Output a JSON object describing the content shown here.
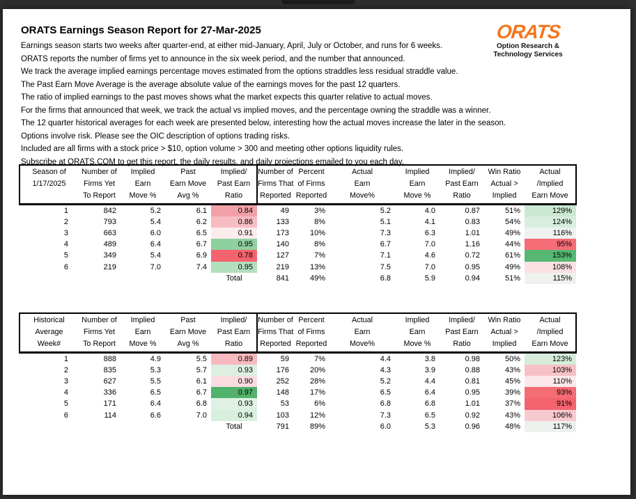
{
  "page": {
    "title": "ORATS Earnings Season Report for 27-Mar-2025",
    "intro_lines": [
      "Earnings season starts two weeks after quarter-end, at either mid-January, April, July or October, and runs for 6 weeks.",
      "ORATS reports the number of firms yet to announce in the six week period, and the number that announced.",
      "We track the average implied earnings percentage moves estimated from the options straddles less residual straddle value.",
      "The Past Earn Move Average is the average absolute value of the earnings moves for the past 12 quarters.",
      "The ratio of implied earnings to the past moves shows what the market expects this quarter relative to actual moves.",
      "For the firms that announced that week, we track the actual vs implied moves, and the percentage owning the straddle was a winner.",
      "The 12 quarter historical averages for each week are presented below, interesting how the actual moves increase the later in the season.",
      "Options involve risk. Please see the OIC description of options trading risks.",
      "Included are all firms with a stock price > $10, option volume > 300 and meeting other options liquidity rules.",
      "Subscribe at ORATS.COM to get this report, the daily results, and daily projections emailed to you each day."
    ]
  },
  "logo": {
    "brand": "ORATS",
    "tagline_line1": "Option Research &",
    "tagline_line2": "Technology Services",
    "brand_color": "#f4771f"
  },
  "tables": [
    {
      "name": "current-season",
      "header_columns": [
        [
          "Season of",
          "1/17/2025",
          ""
        ],
        [
          "Number of",
          "Firms Yet",
          "To Report"
        ],
        [
          "Implied",
          "Earn",
          "Move %"
        ],
        [
          "Past",
          "Earn Move",
          "Avg %"
        ],
        [
          "Implied/",
          "Past Earn",
          "Ratio"
        ],
        [
          "Number of",
          "Firms That",
          "Reported"
        ],
        [
          "Percent",
          "of Firms",
          "Reported"
        ],
        [
          "Actual",
          "Earn",
          "Move%"
        ],
        [
          "Implied",
          "Earn",
          "Move %"
        ],
        [
          "Implied/",
          "Past Earn",
          "Ratio"
        ],
        [
          "Win Ratio",
          "Actual >",
          "Implied"
        ],
        [
          "Actual",
          "/Implied",
          "Earn Move"
        ]
      ],
      "rows": [
        {
          "cells": [
            "1",
            "842",
            "5.2",
            "6.1",
            "0.84",
            "49",
            "3%",
            "5.2",
            "4.0",
            "0.87",
            "51%",
            "129%"
          ],
          "ratio_fill": "#f2a0a7",
          "move_fill": "#cbe8d3"
        },
        {
          "cells": [
            "2",
            "793",
            "5.4",
            "6.2",
            "0.86",
            "133",
            "8%",
            "5.1",
            "4.1",
            "0.83",
            "54%",
            "124%"
          ],
          "ratio_fill": "#f6bcc1",
          "move_fill": "#d8eedf"
        },
        {
          "cells": [
            "3",
            "663",
            "6.0",
            "6.5",
            "0.91",
            "173",
            "10%",
            "7.3",
            "6.3",
            "1.01",
            "49%",
            "116%"
          ],
          "ratio_fill": "#fcecee",
          "move_fill": "#eff2f0"
        },
        {
          "cells": [
            "4",
            "489",
            "6.4",
            "6.7",
            "0.95",
            "140",
            "8%",
            "6.7",
            "7.0",
            "1.16",
            "44%",
            "95%"
          ],
          "ratio_fill": "#8fd09f",
          "move_fill": "#f56d76"
        },
        {
          "cells": [
            "5",
            "349",
            "5.4",
            "6.9",
            "0.78",
            "127",
            "7%",
            "7.1",
            "4.6",
            "0.72",
            "61%",
            "153%"
          ],
          "ratio_fill": "#f4636e",
          "move_fill": "#56b873"
        },
        {
          "cells": [
            "6",
            "219",
            "7.0",
            "7.4",
            "0.95",
            "219",
            "13%",
            "7.5",
            "7.0",
            "0.95",
            "49%",
            "108%"
          ],
          "ratio_fill": "#b2dfbd",
          "move_fill": "#fbe1e3"
        }
      ],
      "total": {
        "cells": [
          "",
          "",
          "",
          "",
          "Total",
          "841",
          "49%",
          "6.8",
          "5.9",
          "0.94",
          "51%",
          "115%"
        ],
        "move_fill": "#eff1ef"
      }
    },
    {
      "name": "historical-average",
      "header_columns": [
        [
          "Historical",
          "Average",
          "Week#"
        ],
        [
          "Number of",
          "Firms Yet",
          "To Report"
        ],
        [
          "Implied",
          "Earn",
          "Move %"
        ],
        [
          "Past",
          "Earn Move",
          "Avg %"
        ],
        [
          "Implied/",
          "Past Earn",
          "Ratio"
        ],
        [
          "Number of",
          "Firms That",
          "Reported"
        ],
        [
          "Percent",
          "of Firms",
          "Reported"
        ],
        [
          "Actual",
          "Earn",
          "Move%"
        ],
        [
          "Implied",
          "Earn",
          "Move %"
        ],
        [
          "Implied/",
          "Past Earn",
          "Ratio"
        ],
        [
          "Win Ratio",
          "Actual >",
          "Implied"
        ],
        [
          "Actual",
          "/Implied",
          "Earn Move"
        ]
      ],
      "rows": [
        {
          "cells": [
            "1",
            "888",
            "4.9",
            "5.5",
            "0.89",
            "59",
            "7%",
            "4.4",
            "3.8",
            "0.98",
            "50%",
            "123%"
          ],
          "ratio_fill": "#f7b9bf",
          "move_fill": "#d6eddc"
        },
        {
          "cells": [
            "2",
            "835",
            "5.3",
            "5.7",
            "0.93",
            "176",
            "20%",
            "4.3",
            "3.9",
            "0.88",
            "43%",
            "103%"
          ],
          "ratio_fill": "#dcf0e1",
          "move_fill": "#f7c2c7"
        },
        {
          "cells": [
            "3",
            "627",
            "5.5",
            "6.1",
            "0.90",
            "252",
            "28%",
            "5.2",
            "4.4",
            "0.81",
            "45%",
            "110%"
          ],
          "ratio_fill": "#fadce0",
          "move_fill": "#fce8ea"
        },
        {
          "cells": [
            "4",
            "336",
            "6.5",
            "6.7",
            "0.97",
            "148",
            "17%",
            "6.5",
            "6.4",
            "0.95",
            "39%",
            "93%"
          ],
          "ratio_fill": "#50b26b",
          "move_fill": "#f56d74"
        },
        {
          "cells": [
            "5",
            "171",
            "6.4",
            "6.8",
            "0.93",
            "53",
            "6%",
            "6.8",
            "6.8",
            "1.01",
            "37%",
            "91%"
          ],
          "ratio_fill": "#dff1e4",
          "move_fill": "#f4636e"
        },
        {
          "cells": [
            "6",
            "114",
            "6.6",
            "7.0",
            "0.94",
            "103",
            "12%",
            "7.3",
            "6.5",
            "0.92",
            "43%",
            "106%"
          ],
          "ratio_fill": "#d8efde",
          "move_fill": "#f8c9ce"
        }
      ],
      "total": {
        "cells": [
          "",
          "",
          "",
          "",
          "Total",
          "791",
          "89%",
          "6.0",
          "5.3",
          "0.96",
          "48%",
          "117%"
        ],
        "move_fill": "#edf1ee"
      }
    }
  ]
}
